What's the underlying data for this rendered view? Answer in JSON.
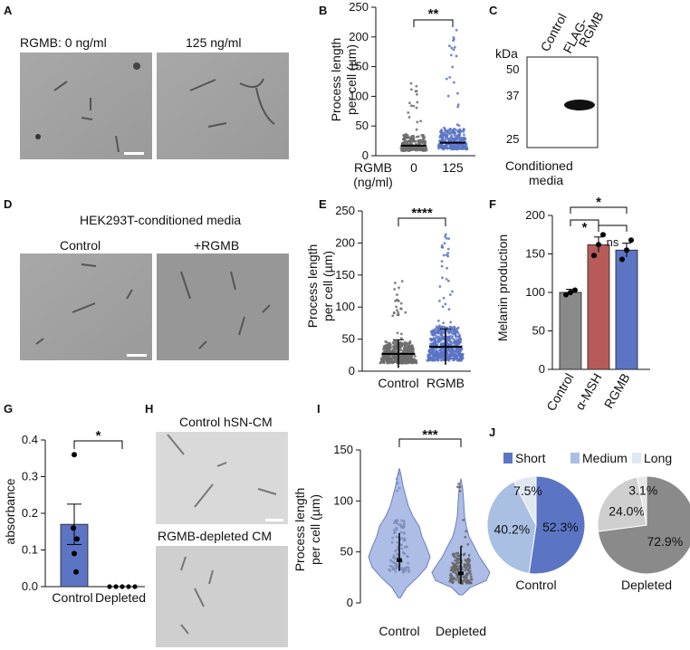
{
  "panels": {
    "A": {
      "letter": "A",
      "label_left": "RGMB: 0 ng/ml",
      "label_right": "125 ng/ml"
    },
    "B": {
      "letter": "B",
      "ylabel": "Process length\nper cell (µm)",
      "xtitle": "RGMB\n(ng/ml)",
      "sig": "**"
    },
    "C": {
      "letter": "C",
      "lane1": "Control",
      "lane2": "FLAG-\nRGMB",
      "kda": "kDa",
      "markers": [
        "50",
        "37",
        "25"
      ],
      "caption": "Conditioned\nmedia"
    },
    "D": {
      "letter": "D",
      "title": "HEK293T-conditioned media",
      "label_left": "Control",
      "label_right": "+RGMB"
    },
    "E": {
      "letter": "E",
      "ylabel": "Process length\nper cell (µm)",
      "sig": "****"
    },
    "F": {
      "letter": "F",
      "ylabel": "Melanin production",
      "sig1": "*",
      "sig2": "*",
      "sig3": "ns"
    },
    "G": {
      "letter": "G",
      "ylabel": "absorbance",
      "sig": "*"
    },
    "H": {
      "letter": "H",
      "label_top": "Control hSN-CM",
      "label_bottom": "RGMB-depleted CM"
    },
    "I": {
      "letter": "I",
      "ylabel": "Process length\nper cell (µm)",
      "sig": "***"
    },
    "J": {
      "letter": "J",
      "legend": [
        "Short",
        "Medium",
        "Long"
      ]
    }
  },
  "colors": {
    "blue": "#5b74c4",
    "lightblue": "#a9c0e3",
    "grey": "#8a8a8a",
    "lightgrey": "#cfcfcf",
    "red": "#b85b58",
    "violin": "#aebde6"
  },
  "chart_data": [
    {
      "panel": "B",
      "type": "scatter",
      "categories": [
        "0",
        "125"
      ],
      "medians": [
        17,
        22
      ],
      "ylim": [
        0,
        250
      ],
      "yticks": [
        0,
        50,
        100,
        150,
        200,
        250
      ]
    },
    {
      "panel": "E",
      "type": "scatter",
      "categories": [
        "Control",
        "RGMB"
      ],
      "means": [
        27,
        38
      ],
      "sd": [
        22,
        28
      ],
      "ylim": [
        0,
        250
      ],
      "yticks": [
        0,
        50,
        100,
        150,
        200,
        250
      ]
    },
    {
      "panel": "F",
      "type": "bar",
      "categories": [
        "Control",
        "α-MSH",
        "RGMB"
      ],
      "values": [
        100,
        162,
        155
      ],
      "sem": [
        4,
        10,
        9
      ],
      "points": [
        [
          97,
          100,
          103
        ],
        [
          148,
          162,
          175
        ],
        [
          143,
          155,
          168
        ]
      ],
      "ylim": [
        0,
        200
      ],
      "yticks": [
        0,
        50,
        100,
        150,
        200
      ]
    },
    {
      "panel": "G",
      "type": "bar",
      "categories": [
        "Control",
        "Depleted"
      ],
      "values": [
        0.17,
        0
      ],
      "sem": [
        0.055,
        0
      ],
      "points": [
        [
          0.36,
          0.16,
          0.13,
          0.09,
          0.04
        ],
        [
          0,
          0,
          0,
          0,
          0
        ]
      ],
      "ylim": [
        0,
        0.4
      ],
      "yticks": [
        0.0,
        0.1,
        0.2,
        0.3,
        0.4
      ]
    },
    {
      "panel": "I",
      "type": "scatter",
      "categories": [
        "Control",
        "Depleted"
      ],
      "medians": [
        42,
        29
      ],
      "ylim": [
        0,
        150
      ],
      "yticks": [
        0,
        50,
        100,
        150
      ]
    },
    {
      "panel": "J",
      "type": "pie",
      "charts": [
        {
          "name": "Control",
          "slices": [
            {
              "label": "Short",
              "value": 52.3,
              "text": "52.3%"
            },
            {
              "label": "Medium",
              "value": 40.2,
              "text": "40.2%"
            },
            {
              "label": "Long",
              "value": 7.5,
              "text": "7.5%"
            }
          ]
        },
        {
          "name": "Depleted",
          "slices": [
            {
              "label": "Short",
              "value": 72.9,
              "text": "72.9%"
            },
            {
              "label": "Medium",
              "value": 24.0,
              "text": "24.0%"
            },
            {
              "label": "Long",
              "value": 3.1,
              "text": "3.1%"
            }
          ]
        }
      ]
    }
  ]
}
